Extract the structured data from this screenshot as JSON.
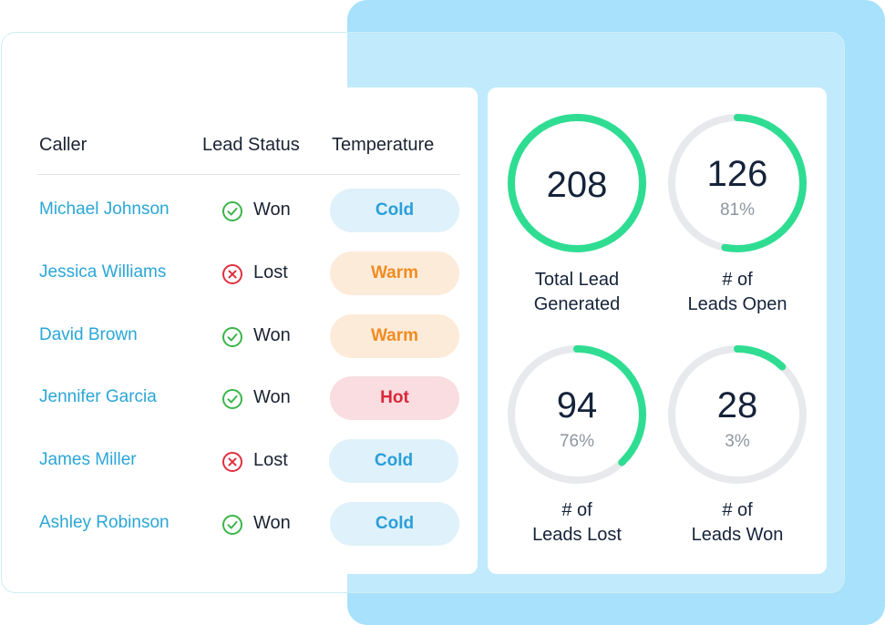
{
  "table": {
    "headers": {
      "caller": "Caller",
      "status": "Lead Status",
      "temperature": "Temperature"
    },
    "rows": [
      {
        "caller": "Michael Johnson",
        "status": "Won",
        "status_icon": "check-circle-icon",
        "temperature": "Cold"
      },
      {
        "caller": "Jessica Williams",
        "status": "Lost",
        "status_icon": "x-circle-icon",
        "temperature": "Warm"
      },
      {
        "caller": "David Brown",
        "status": "Won",
        "status_icon": "check-circle-icon",
        "temperature": "Warm"
      },
      {
        "caller": "Jennifer Garcia",
        "status": "Won",
        "status_icon": "check-circle-icon",
        "temperature": "Hot"
      },
      {
        "caller": "James Miller",
        "status": "Lost",
        "status_icon": "x-circle-icon",
        "temperature": "Cold"
      },
      {
        "caller": "Ashley Robinson",
        "status": "Won",
        "status_icon": "check-circle-icon",
        "temperature": "Cold"
      }
    ]
  },
  "stats": [
    {
      "value": "208",
      "percent": "",
      "fraction": 1.0,
      "label_line1": "Total Lead",
      "label_line2": "Generated"
    },
    {
      "value": "126",
      "percent": "81%",
      "fraction": 0.53,
      "label_line1": "# of",
      "label_line2": "Leads Open"
    },
    {
      "value": "94",
      "percent": "76%",
      "fraction": 0.38,
      "label_line1": "# of",
      "label_line2": "Leads Lost"
    },
    {
      "value": "28",
      "percent": "3%",
      "fraction": 0.12,
      "label_line1": "# of",
      "label_line2": "Leads Won"
    }
  ],
  "colors": {
    "accent_green": "#2fdd92",
    "track_grey": "#e7e9ec",
    "won_green": "#3bb54a",
    "lost_red": "#e0303f",
    "caller_blue": "#2aa6d6"
  }
}
